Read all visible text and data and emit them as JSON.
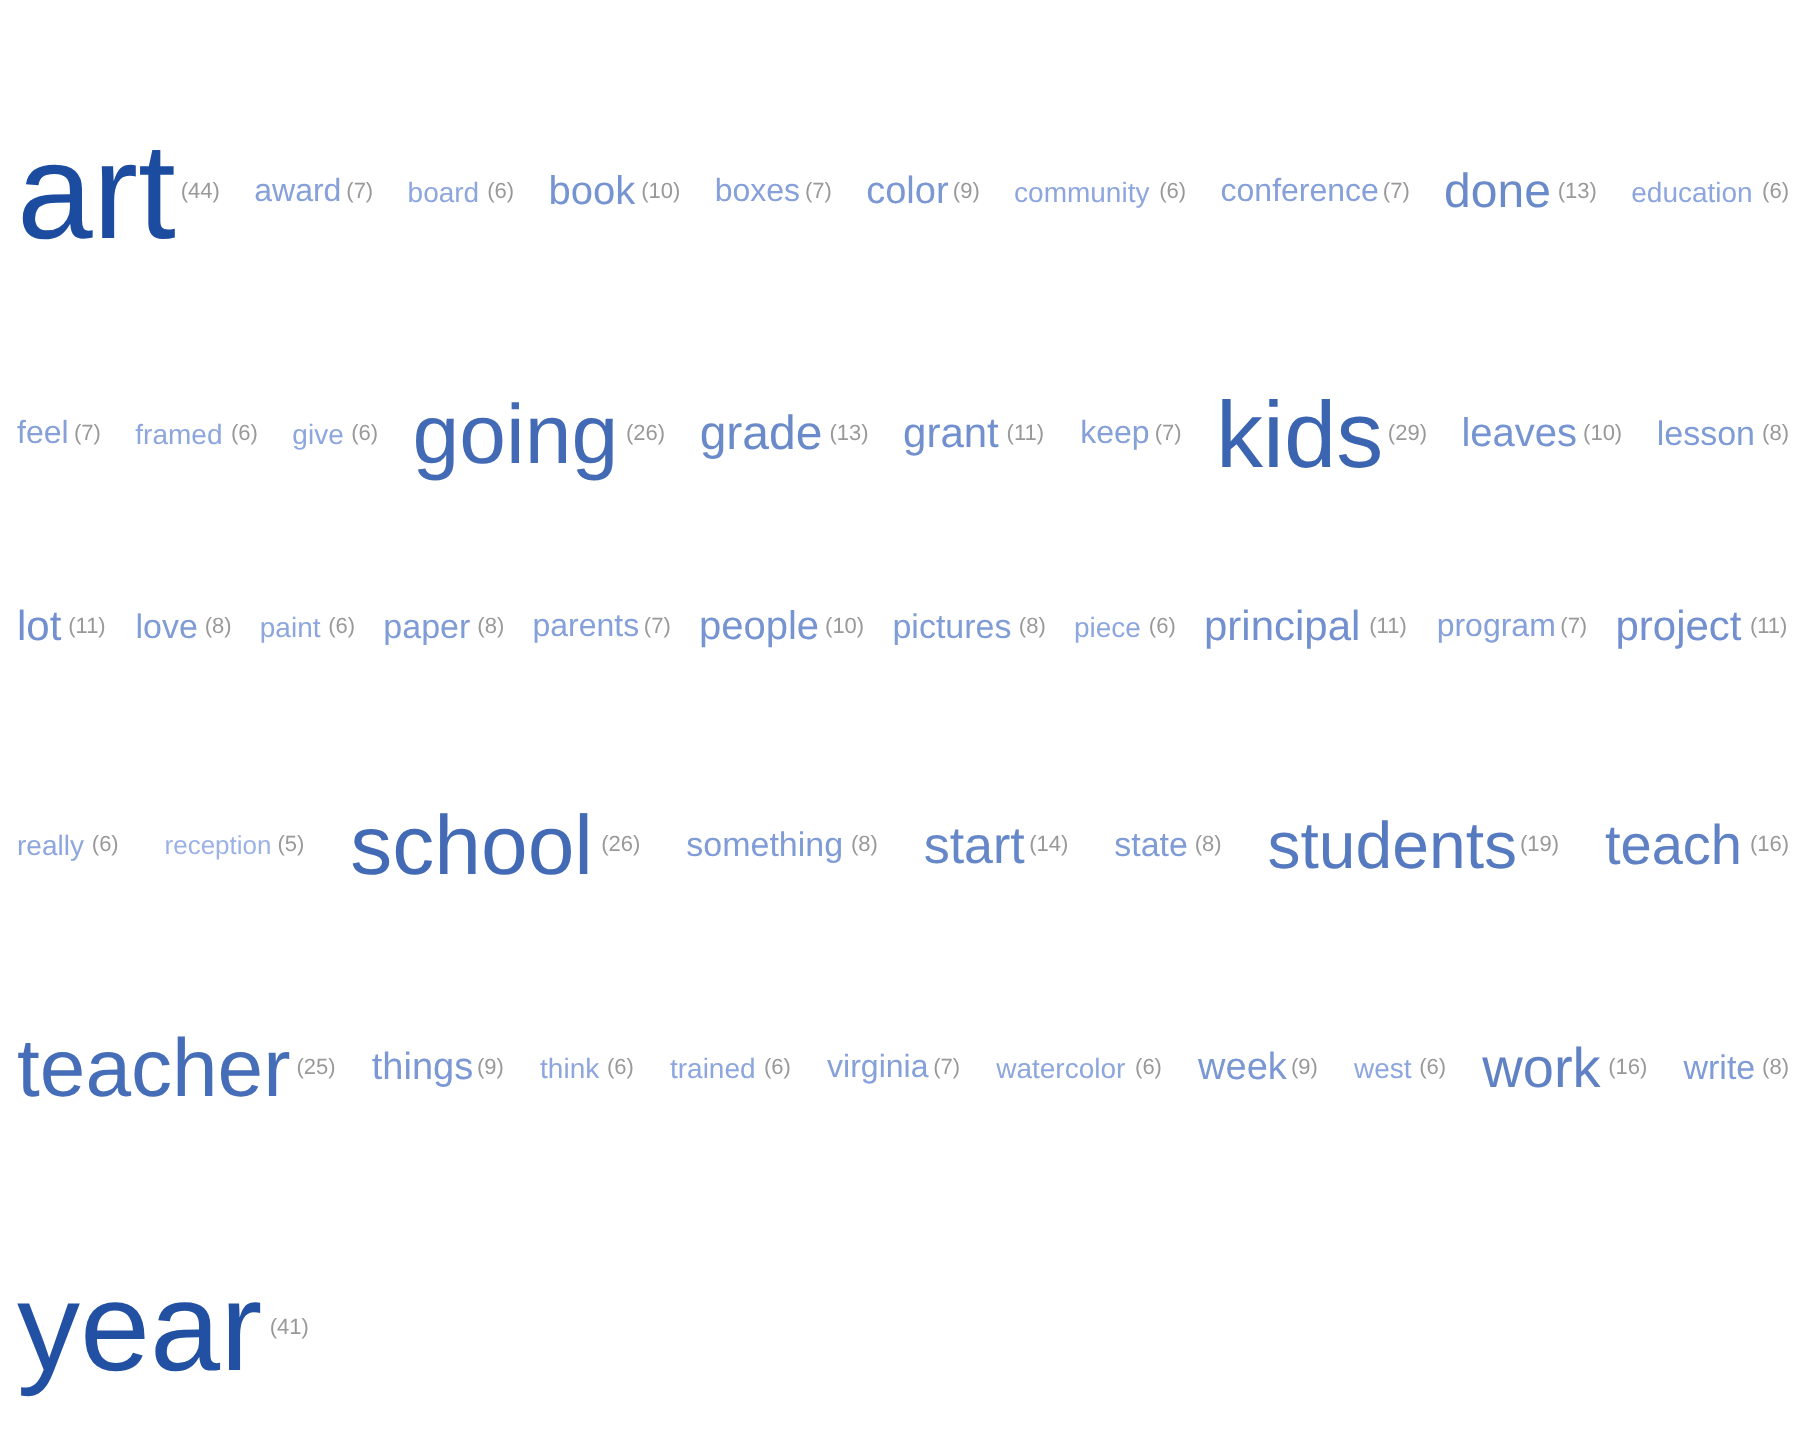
{
  "chart_data": {
    "type": "other",
    "categories": [
      "art",
      "award",
      "board",
      "book",
      "boxes",
      "color",
      "community",
      "conference",
      "done",
      "education",
      "feel",
      "framed",
      "give",
      "going",
      "grade",
      "grant",
      "keep",
      "kids",
      "leaves",
      "lesson",
      "lot",
      "love",
      "paint",
      "paper",
      "parents",
      "people",
      "pictures",
      "piece",
      "principal",
      "program",
      "project",
      "really",
      "reception",
      "school",
      "something",
      "start",
      "state",
      "students",
      "teach",
      "teacher",
      "things",
      "think",
      "trained",
      "virginia",
      "watercolor",
      "week",
      "west",
      "work",
      "write",
      "year"
    ],
    "values": [
      44,
      7,
      6,
      10,
      7,
      9,
      6,
      7,
      13,
      6,
      7,
      6,
      6,
      26,
      13,
      11,
      7,
      29,
      10,
      8,
      11,
      8,
      6,
      8,
      7,
      10,
      8,
      6,
      11,
      7,
      11,
      6,
      5,
      26,
      8,
      14,
      8,
      19,
      16,
      25,
      9,
      6,
      6,
      7,
      6,
      9,
      6,
      16,
      8,
      41
    ],
    "value_labels": [
      "(44)",
      "(7)",
      "(6)",
      "(10)",
      "(7)",
      "(9)",
      "(6)",
      "(7)",
      "(13)",
      "(6)",
      "(7)",
      "(6)",
      "(6)",
      "(26)",
      "(13)",
      "(11)",
      "(7)",
      "(29)",
      "(10)",
      "(8)",
      "(11)",
      "(8)",
      "(6)",
      "(8)",
      "(7)",
      "(10)",
      "(8)",
      "(6)",
      "(11)",
      "(7)",
      "(11)",
      "(6)",
      "(5)",
      "(26)",
      "(8)",
      "(14)",
      "(8)",
      "(19)",
      "(16)",
      "(25)",
      "(9)",
      "(6)",
      "(6)",
      "(7)",
      "(6)",
      "(9)",
      "(6)",
      "(16)",
      "(8)",
      "(41)"
    ]
  }
}
